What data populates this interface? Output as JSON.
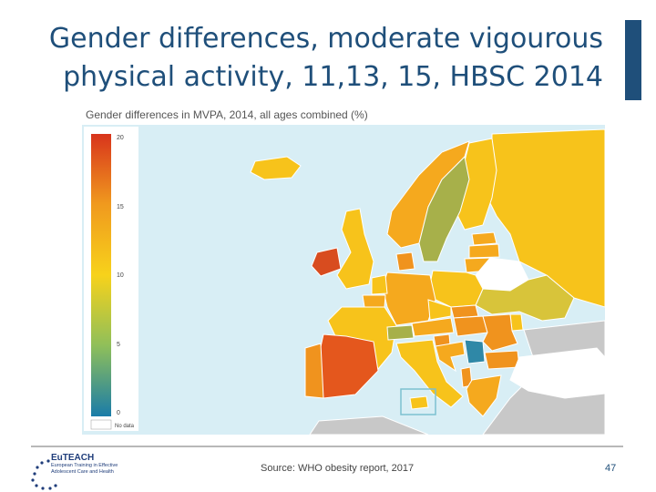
{
  "slide": {
    "title_line1": "Gender differences, moderate vigourous",
    "title_line2": "physical activity, 11,13, 15, HBSC 2014",
    "source": "Source: WHO obesity report, 2017",
    "page_number": "47"
  },
  "map": {
    "caption": "Gender differences in MVPA, 2014, all ages combined (%)",
    "legend": {
      "ticks": [
        "20",
        "15",
        "10",
        "5",
        "0"
      ],
      "no_data_label": "No data"
    },
    "colors": {
      "water": "#d8eef5",
      "no_data": "#ffffff",
      "non_study": "#c8c8c8",
      "scale_low": "#1a7ca8",
      "scale_mid": "#f7d21b",
      "scale_high": "#d8341c"
    },
    "countries": [
      {
        "name": "Ireland",
        "color": "#d84c1f"
      },
      {
        "name": "United Kingdom",
        "color": "#f7c31b"
      },
      {
        "name": "Iceland",
        "color": "#f7c31b"
      },
      {
        "name": "Norway",
        "color": "#f5a91e"
      },
      {
        "name": "Sweden",
        "color": "#a7b04a"
      },
      {
        "name": "Finland",
        "color": "#f7c31b"
      },
      {
        "name": "Russia",
        "color": "#f7c31b"
      },
      {
        "name": "Estonia",
        "color": "#f5a91e"
      },
      {
        "name": "Latvia",
        "color": "#f5a91e"
      },
      {
        "name": "Lithuania",
        "color": "#f5a91e"
      },
      {
        "name": "Belarus",
        "color": "#ffffff"
      },
      {
        "name": "Ukraine",
        "color": "#d8c43a"
      },
      {
        "name": "Poland",
        "color": "#f7c31b"
      },
      {
        "name": "Germany",
        "color": "#f5a91e"
      },
      {
        "name": "Denmark",
        "color": "#f0931e"
      },
      {
        "name": "Netherlands",
        "color": "#f7c31b"
      },
      {
        "name": "Belgium",
        "color": "#f5a91e"
      },
      {
        "name": "France",
        "color": "#f7c31b"
      },
      {
        "name": "Spain",
        "color": "#e4571d"
      },
      {
        "name": "Portugal",
        "color": "#f0931e"
      },
      {
        "name": "Switzerland",
        "color": "#a7b04a"
      },
      {
        "name": "Austria",
        "color": "#f5a91e"
      },
      {
        "name": "Czechia",
        "color": "#f7c31b"
      },
      {
        "name": "Slovakia",
        "color": "#f0931e"
      },
      {
        "name": "Hungary",
        "color": "#f0931e"
      },
      {
        "name": "Romania",
        "color": "#f0931e"
      },
      {
        "name": "Moldova",
        "color": "#f7c31b"
      },
      {
        "name": "Serbia",
        "color": "#2f88a7"
      },
      {
        "name": "Croatia",
        "color": "#f5a91e"
      },
      {
        "name": "Slovenia",
        "color": "#f0931e"
      },
      {
        "name": "Bulgaria",
        "color": "#f0931e"
      },
      {
        "name": "Italy",
        "color": "#f7c31b"
      },
      {
        "name": "Greece",
        "color": "#f5a91e"
      },
      {
        "name": "Albania",
        "color": "#f0931e"
      },
      {
        "name": "Malta",
        "color": "#f7c31b"
      },
      {
        "name": "Turkey",
        "color": "#ffffff"
      }
    ]
  },
  "logo": {
    "name": "EuTEACH",
    "subtitle": "European Training in Effective Adolescent Care and Health"
  }
}
